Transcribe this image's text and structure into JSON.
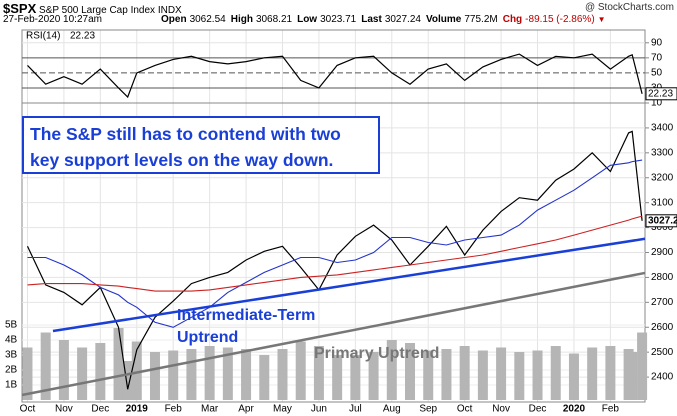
{
  "header": {
    "symbol": "$SPX",
    "name": "S&P 500 Large Cap Index",
    "exchange": "INDX",
    "source": "@ StockCharts.com",
    "date": "27-Feb-2020 10:27am",
    "quote": [
      {
        "label": "Open",
        "value": 3062.54
      },
      {
        "label": "High",
        "value": 3068.21
      },
      {
        "label": "Low",
        "value": 3023.71
      },
      {
        "label": "Last",
        "value": 3027.24
      },
      {
        "label": "Volume",
        "value": "775.2M"
      },
      {
        "label": "Chg",
        "value": "-89.15 (-2.86%)"
      }
    ]
  },
  "note": [
    "The S&P still has to contend with two",
    "key support levels on the way down."
  ],
  "chart_data": [
    {
      "type": "line",
      "series": [
        {
          "name": "RSI(14)",
          "color": "#000000",
          "values": [
            60,
            35,
            45,
            35,
            55,
            30,
            18,
            50,
            60,
            68,
            72,
            65,
            62,
            65,
            70,
            72,
            40,
            30,
            60,
            70,
            72,
            50,
            35,
            55,
            62,
            40,
            58,
            68,
            75,
            60,
            72,
            70,
            75,
            55,
            72,
            74,
            22.23
          ]
        }
      ],
      "ylim": [
        10,
        107
      ],
      "yticks": [
        10,
        30,
        50,
        70,
        90
      ]
    },
    {
      "type": "line",
      "x": [
        0,
        0.5,
        1,
        1.5,
        2,
        2.5,
        2.75,
        3,
        3.5,
        4,
        4.5,
        5,
        5.5,
        6,
        6.5,
        7,
        7.5,
        8,
        8.5,
        9,
        9.5,
        10,
        10.5,
        11,
        11.5,
        12,
        12.5,
        13,
        13.5,
        14,
        14.5,
        15,
        15.5,
        16,
        16.5,
        16.6,
        16.87
      ],
      "series": [
        {
          "color": "#000000",
          "values": [
            2925,
            2770,
            2740,
            2690,
            2760,
            2600,
            2351,
            2510,
            2640,
            2705,
            2775,
            2800,
            2820,
            2870,
            2905,
            2925,
            2840,
            2750,
            2890,
            2965,
            3010,
            2950,
            2850,
            2925,
            3005,
            2890,
            2990,
            3065,
            3120,
            3110,
            3190,
            3235,
            3300,
            3225,
            3380,
            3386,
            3027.24
          ]
        },
        {
          "color": "#2233cc",
          "values": [
            2880,
            2880,
            2850,
            2810,
            2760,
            2730,
            2700,
            2680,
            2620,
            2600,
            2640,
            2680,
            2740,
            2780,
            2820,
            2850,
            2880,
            2880,
            2860,
            2870,
            2900,
            2960,
            2960,
            2940,
            2930,
            2950,
            2960,
            2970,
            3010,
            3070,
            3110,
            3150,
            3200,
            3250,
            3260,
            3265,
            3271
          ]
        },
        {
          "color": "#cc2222",
          "values": [
            2770,
            2775,
            2775,
            2775,
            2770,
            2765,
            2760,
            2755,
            2745,
            2745,
            2745,
            2750,
            2760,
            2770,
            2780,
            2790,
            2800,
            2805,
            2810,
            2820,
            2830,
            2840,
            2850,
            2860,
            2870,
            2880,
            2890,
            2905,
            2920,
            2935,
            2950,
            2970,
            2990,
            3010,
            3030,
            3035,
            3046
          ]
        }
      ],
      "xlim": [
        -0.15,
        16.95
      ],
      "xticks": [
        {
          "value": 0,
          "label": "Oct"
        },
        {
          "value": 1,
          "label": "Nov"
        },
        {
          "value": 2,
          "label": "Dec"
        },
        {
          "value": 3,
          "label": "2019"
        },
        {
          "value": 4,
          "label": "Feb"
        },
        {
          "value": 5,
          "label": "Mar"
        },
        {
          "value": 6,
          "label": "Apr"
        },
        {
          "value": 7,
          "label": "May"
        },
        {
          "value": 8,
          "label": "Jun"
        },
        {
          "value": 9,
          "label": "Jul"
        },
        {
          "value": 10,
          "label": "Aug"
        },
        {
          "value": 11,
          "label": "Sep"
        },
        {
          "value": 12,
          "label": "Oct"
        },
        {
          "value": 13,
          "label": "Nov"
        },
        {
          "value": 14,
          "label": "Dec"
        },
        {
          "value": 15,
          "label": "2020"
        },
        {
          "value": 16,
          "label": "Feb"
        }
      ],
      "ylim": [
        2300,
        3500
      ],
      "yticks": [
        2400,
        2500,
        2600,
        2700,
        2800,
        2900,
        3000,
        3100,
        3200,
        3300,
        3400
      ],
      "trendlines": [
        {
          "x": [
            0.7,
            16.95
          ],
          "values": [
            2585,
            2955
          ],
          "color": "#1a3fd6"
        },
        {
          "x": [
            -0.15,
            16.95
          ],
          "values": [
            2328,
            2818
          ],
          "color": "#777777"
        }
      ],
      "annotations": [
        {
          "text": "Intermediate-Term",
          "color": "#1a3fd6"
        },
        {
          "text": "Uptrend",
          "color": "#1a3fd6"
        },
        {
          "text": "Primary Uptrend",
          "color": "#777777"
        }
      ]
    },
    {
      "type": "bar",
      "color": "#b5b5b5",
      "values": [
        3.5,
        4.5,
        4.0,
        3.5,
        3.8,
        4.8,
        2.6,
        3.9,
        3.2,
        3.3,
        3.4,
        3.6,
        3.5,
        3.4,
        3.0,
        3.4,
        3.9,
        3.6,
        3.0,
        3.0,
        3.2,
        4.0,
        3.8,
        3.3,
        3.4,
        3.6,
        3.3,
        3.5,
        3.2,
        3.3,
        3.6,
        3.1,
        3.5,
        3.6,
        3.4,
        3.2,
        4.5
      ],
      "ylim": [
        0,
        6.6
      ],
      "yticks": [
        {
          "value": 1,
          "label": "1B"
        },
        {
          "value": 2,
          "label": "2B"
        },
        {
          "value": 3,
          "label": "3B"
        },
        {
          "value": 4,
          "label": "4B"
        },
        {
          "value": 5,
          "label": "5B"
        }
      ]
    }
  ]
}
